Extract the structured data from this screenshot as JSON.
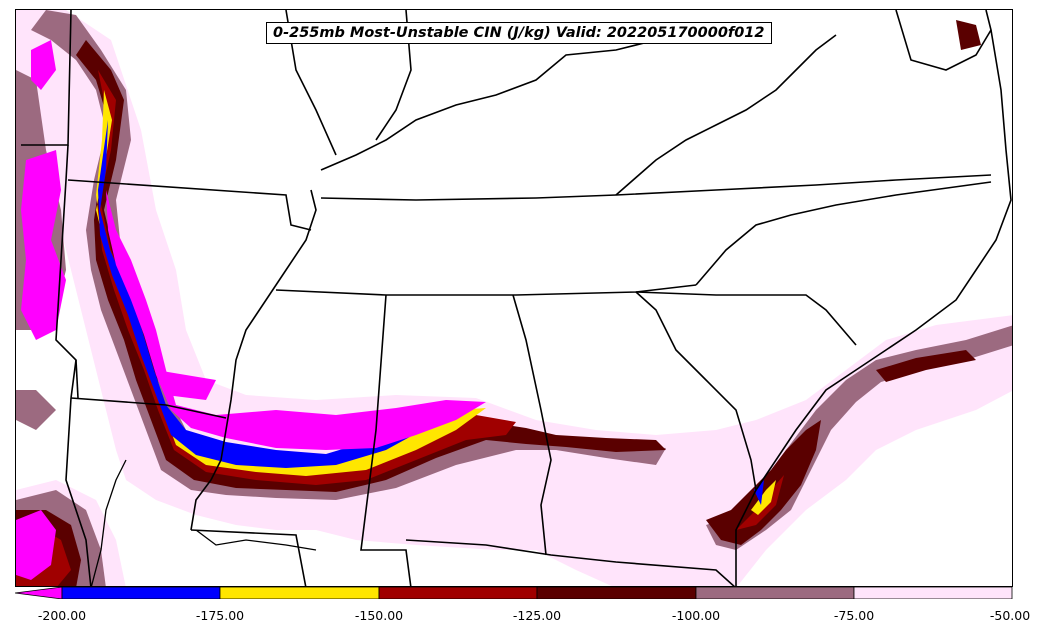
{
  "title": "0-255mb Most-Unstable CIN (J/kg) Valid: 202205170000f012",
  "colorbar": {
    "ticks": [
      "-200.00",
      "-175.00",
      "-150.00",
      "-125.00",
      "-100.00",
      "-75.00",
      "-50.00"
    ],
    "colors": [
      "#ff00ff",
      "#0000ff",
      "#ffe600",
      "#a00000",
      "#5a0000",
      "#9c6a80",
      "#ffe4fb"
    ]
  },
  "legend_colors": {
    "lt_-200": "#ff00ff",
    "-200_-175": "#0000ff",
    "-175_-150": "#ffe600",
    "-150_-125": "#a00000",
    "-125_-100": "#5a0000",
    "-100_-75": "#9c6a80",
    "-75_-50": "#ffe4fb"
  }
}
